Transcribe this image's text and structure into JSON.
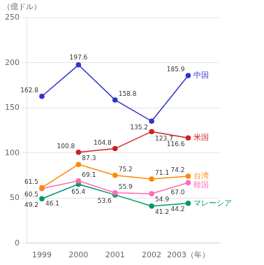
{
  "chart_data": {
    "type": "line",
    "ylabel": "（億ドル）",
    "x": [
      1999,
      2000,
      2001,
      2002,
      2003
    ],
    "series": [
      {
        "name": "中国",
        "color": "#3333cc",
        "values": [
          162.8,
          197.6,
          158.8,
          135.2,
          185.9
        ]
      },
      {
        "name": "米国",
        "color": "#cc2222",
        "values": [
          null,
          100.8,
          104.8,
          123.7,
          116.6
        ]
      },
      {
        "name": "台湾",
        "color": "#ff8800",
        "values": [
          61.5,
          87.3,
          75.2,
          71.1,
          74.2
        ]
      },
      {
        "name": "韓国",
        "color": "#ff69b4",
        "values": [
          60.5,
          69.1,
          55.9,
          54.9,
          67.0
        ],
        "value_labels": [
          "60.5",
          "69.1",
          "55.9",
          "54.9",
          "67.0"
        ]
      },
      {
        "name": "マレーシア",
        "color": "#009966",
        "values": [
          49.2,
          65.4,
          53.6,
          41.2,
          44.2
        ]
      }
    ],
    "annotations": [
      {
        "text": "46.1",
        "x": 1999,
        "y": 46.1
      }
    ],
    "xlim": [
      1998.6,
      2003.85
    ],
    "xticks": [
      1999,
      2000,
      2001,
      2002,
      {
        "value": 2003,
        "label": "2003（年）"
      }
    ],
    "ylim": [
      0,
      250
    ],
    "yticks": [
      0,
      50,
      100,
      150,
      200,
      250
    ],
    "grid": "y",
    "data_labels": true,
    "marker": "circle"
  }
}
